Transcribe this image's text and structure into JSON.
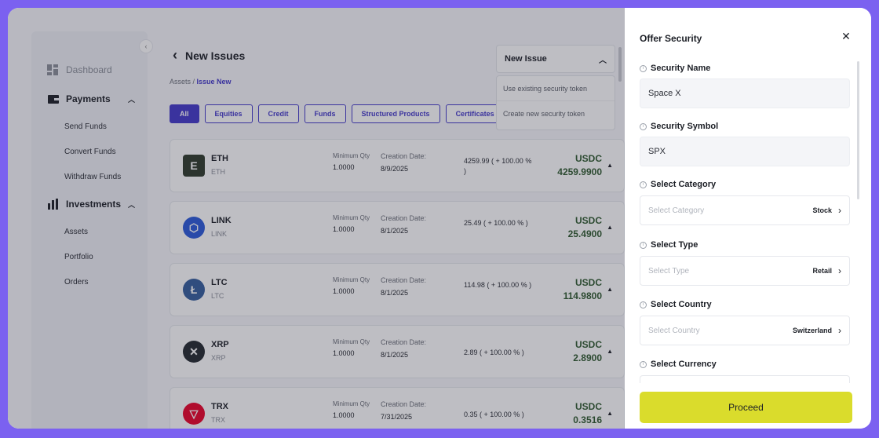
{
  "sidebar": {
    "dashboard": "Dashboard",
    "payments": {
      "label": "Payments",
      "items": [
        "Send Funds",
        "Convert Funds",
        "Withdraw Funds"
      ]
    },
    "investments": {
      "label": "Investments",
      "items": [
        "Assets",
        "Portfolio",
        "Orders"
      ]
    },
    "collapse_icon": "‹"
  },
  "header": {
    "title": "New Issues",
    "back_icon": "‹"
  },
  "breadcrumb": {
    "root": "Assets",
    "sep": " / ",
    "current": "Issue New"
  },
  "filters": [
    "All",
    "Equities",
    "Credit",
    "Funds",
    "Structured Products",
    "Certificates"
  ],
  "new_issue": {
    "label": "New Issue",
    "options": [
      "Use existing security token",
      "Create new security token"
    ]
  },
  "assets": [
    {
      "name": "ETH",
      "symbol": "ETH",
      "logo": "E",
      "color": "#2f3a2a",
      "min_qty_label": "Minimum Qty",
      "min_qty": "1.0000",
      "date_label": "Creation Date:",
      "date": "8/9/2025",
      "change": "4259.99 ( + 100.00 % )",
      "currency": "USDC",
      "value": "4259.9900"
    },
    {
      "name": "LINK",
      "symbol": "LINK",
      "logo": "⬡",
      "color": "#2a5ada",
      "min_qty_label": "Minimum Qty",
      "min_qty": "1.0000",
      "date_label": "Creation Date:",
      "date": "8/1/2025",
      "change": "25.49 ( + 100.00 % )",
      "currency": "USDC",
      "value": "25.4900"
    },
    {
      "name": "LTC",
      "symbol": "LTC",
      "logo": "Ł",
      "color": "#345d9d",
      "min_qty_label": "Minimum Qty",
      "min_qty": "1.0000",
      "date_label": "Creation Date:",
      "date": "8/1/2025",
      "change": "114.98 ( + 100.00 % )",
      "currency": "USDC",
      "value": "114.9800"
    },
    {
      "name": "XRP",
      "symbol": "XRP",
      "logo": "✕",
      "color": "#23292f",
      "min_qty_label": "Minimum Qty",
      "min_qty": "1.0000",
      "date_label": "Creation Date:",
      "date": "8/1/2025",
      "change": "2.89 ( + 100.00 % )",
      "currency": "USDC",
      "value": "2.8900"
    },
    {
      "name": "TRX",
      "symbol": "TRX",
      "logo": "▽",
      "color": "#eb0029",
      "min_qty_label": "Minimum Qty",
      "min_qty": "1.0000",
      "date_label": "Creation Date:",
      "date": "7/31/2025",
      "change": "0.35 ( + 100.00 % )",
      "currency": "USDC",
      "value": "0.3516"
    }
  ],
  "panel": {
    "title": "Offer Security",
    "close_icon": "✕",
    "security_name": {
      "label": "Security Name",
      "value": "Space X"
    },
    "security_symbol": {
      "label": "Security Symbol",
      "value": "SPX"
    },
    "category": {
      "label": "Select Category",
      "placeholder": "Select Category",
      "selected": "Stock"
    },
    "type": {
      "label": "Select Type",
      "placeholder": "Select Type",
      "selected": "Retail"
    },
    "country": {
      "label": "Select Country",
      "placeholder": "Select Country",
      "selected": "Switzerland"
    },
    "currency": {
      "label": "Select Currency"
    },
    "proceed": "Proceed"
  }
}
